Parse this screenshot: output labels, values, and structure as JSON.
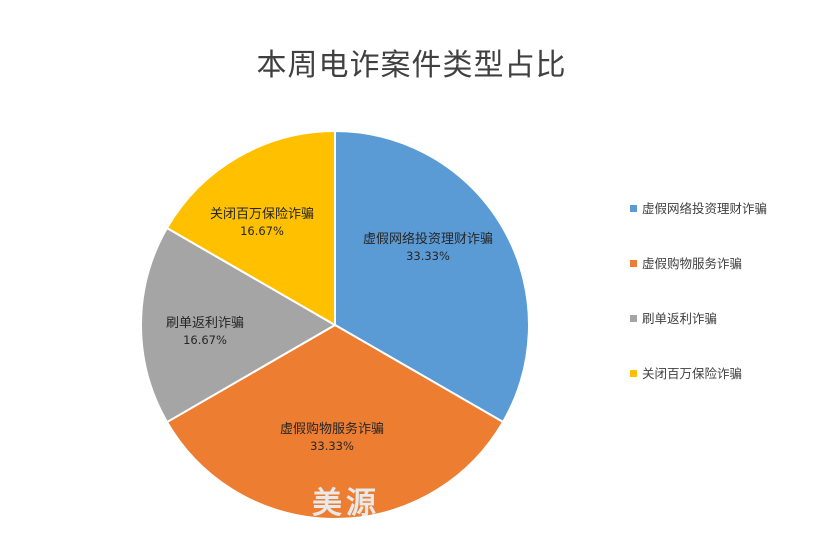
{
  "chart_data": {
    "type": "pie",
    "title": "本周电诈案件类型占比",
    "slices": [
      {
        "label": "虚假网络投资理财诈骗",
        "percent": "33.33%",
        "value": 33.33,
        "color": "#5b9bd5"
      },
      {
        "label": "虚假购物服务诈骗",
        "percent": "33.33%",
        "value": 33.33,
        "color": "#ed7d31"
      },
      {
        "label": "刷单返利诈骗",
        "percent": "16.67%",
        "value": 16.67,
        "color": "#a5a5a5"
      },
      {
        "label": "关闭百万保险诈骗",
        "percent": "16.67%",
        "value": 16.67,
        "color": "#ffc000"
      }
    ],
    "legend_position": "right"
  },
  "watermark": "美源"
}
